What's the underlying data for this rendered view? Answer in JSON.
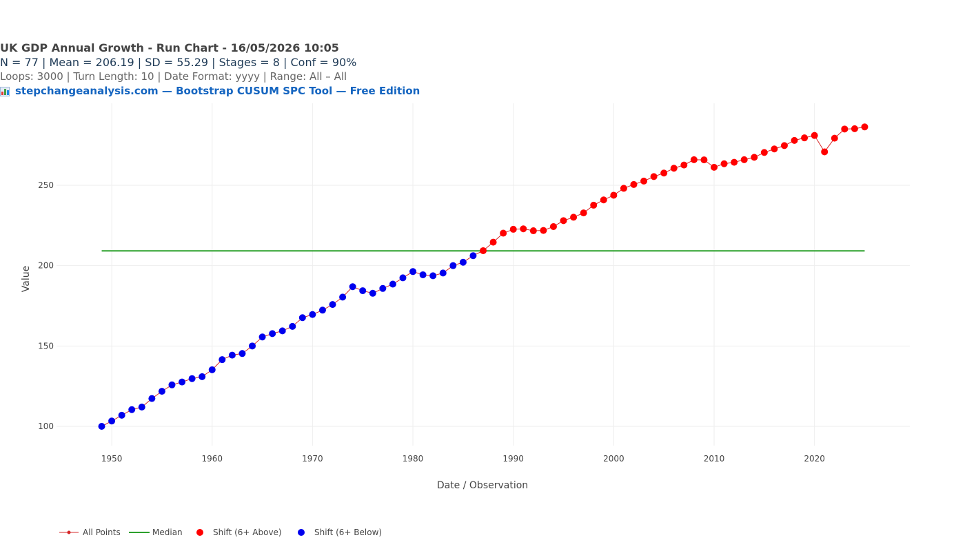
{
  "header": {
    "title": "UK GDP Annual Growth - Run Chart - 16/05/2026 10:05",
    "stats": "N = 77  |  Mean = 206.19  |  SD = 55.29  |  Stages = 8  |  Conf = 90%",
    "params": "Loops: 3000  |  Turn Length: 10  |  Date Format: yyyy  |  Range: All – All",
    "brand_icon": "bar-chart-icon",
    "brand": "stepchangeanalysis.com — Bootstrap CUSUM SPC Tool — Free Edition"
  },
  "chart_data": {
    "type": "line",
    "xlabel": "Date / Observation",
    "ylabel": "Value",
    "xlim": [
      1944.5,
      2029.5
    ],
    "ylim": [
      88,
      301
    ],
    "x_ticks": [
      1950,
      1960,
      1970,
      1980,
      1990,
      2000,
      2010,
      2020
    ],
    "y_ticks": [
      100,
      150,
      200,
      250
    ],
    "grid": true,
    "legend_position": "bottom-left",
    "median": 209.2,
    "colors": {
      "line": "#d62728",
      "median": "#2ca02c",
      "above": "#ff0000",
      "below": "#0000ee",
      "grid": "#eeeeee",
      "text": "#444444"
    },
    "x": [
      1949,
      1950,
      1951,
      1952,
      1953,
      1954,
      1955,
      1956,
      1957,
      1958,
      1959,
      1960,
      1961,
      1962,
      1963,
      1964,
      1965,
      1966,
      1967,
      1968,
      1969,
      1970,
      1971,
      1972,
      1973,
      1974,
      1975,
      1976,
      1977,
      1978,
      1979,
      1980,
      1981,
      1982,
      1983,
      1984,
      1985,
      1986,
      1987,
      1988,
      1989,
      1990,
      1991,
      1992,
      1993,
      1994,
      1995,
      1996,
      1997,
      1998,
      1999,
      2000,
      2001,
      2002,
      2003,
      2004,
      2005,
      2006,
      2007,
      2008,
      2009,
      2010,
      2011,
      2012,
      2013,
      2014,
      2015,
      2016,
      2017,
      2018,
      2019,
      2020,
      2021,
      2022,
      2023,
      2024,
      2025
    ],
    "values": [
      100.0,
      103.3,
      106.9,
      110.4,
      112.0,
      117.3,
      121.8,
      125.8,
      127.6,
      129.7,
      130.9,
      135.2,
      141.5,
      144.3,
      145.3,
      150.0,
      155.6,
      157.7,
      159.4,
      162.2,
      167.6,
      169.6,
      172.3,
      175.8,
      180.4,
      186.9,
      184.4,
      182.8,
      185.8,
      188.5,
      192.4,
      196.3,
      194.3,
      193.7,
      195.4,
      200.0,
      202.1,
      206.2,
      209.3,
      214.6,
      220.2,
      222.6,
      222.9,
      221.7,
      221.9,
      224.3,
      228.0,
      230.1,
      232.8,
      237.6,
      240.9,
      243.8,
      248.1,
      250.5,
      252.6,
      255.4,
      257.6,
      260.6,
      262.6,
      265.9,
      265.8,
      261.2,
      263.4,
      264.3,
      265.9,
      267.4,
      270.4,
      272.6,
      274.7,
      277.9,
      279.5,
      281.0,
      270.8,
      279.3,
      285.0,
      285.2,
      286.3
    ],
    "series": [
      {
        "name": "All Points",
        "kind": "line"
      },
      {
        "name": "Median",
        "kind": "median"
      },
      {
        "name": "Shift (6+ Above)",
        "kind": "above"
      },
      {
        "name": "Shift (6+ Below)",
        "kind": "below"
      }
    ]
  }
}
